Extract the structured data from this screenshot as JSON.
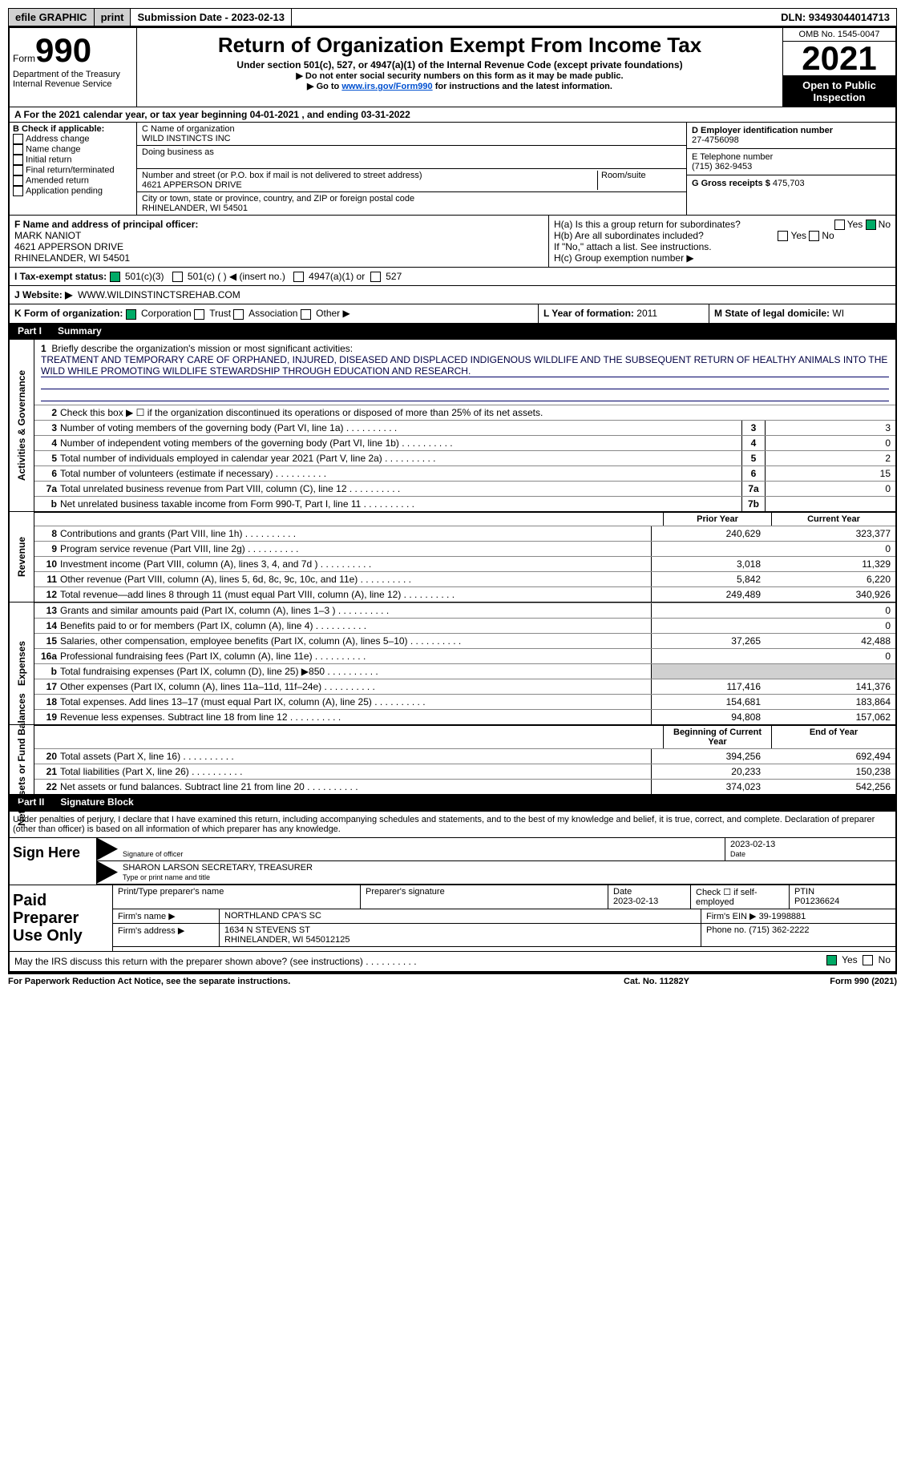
{
  "topbar": {
    "efile": "efile GRAPHIC",
    "print": "print",
    "submission": "Submission Date - 2023-02-13",
    "dln": "DLN: 93493044014713"
  },
  "header": {
    "form_word": "Form",
    "form_num": "990",
    "dept": "Department of the Treasury",
    "irs": "Internal Revenue Service",
    "title": "Return of Organization Exempt From Income Tax",
    "subtitle": "Under section 501(c), 527, or 4947(a)(1) of the Internal Revenue Code (except private foundations)",
    "note1": "▶ Do not enter social security numbers on this form as it may be made public.",
    "note2_pre": "▶ Go to ",
    "note2_link": "www.irs.gov/Form990",
    "note2_post": " for instructions and the latest information.",
    "omb": "OMB No. 1545-0047",
    "year": "2021",
    "public": "Open to Public Inspection"
  },
  "A": {
    "text": "A For the 2021 calendar year, or tax year beginning 04-01-2021   , and ending 03-31-2022"
  },
  "B": {
    "label": "B Check if applicable:",
    "opts": [
      "Address change",
      "Name change",
      "Initial return",
      "Final return/terminated",
      "Amended return",
      "Application pending"
    ]
  },
  "C": {
    "name_lbl": "C Name of organization",
    "name": "WILD INSTINCTS INC",
    "dba_lbl": "Doing business as",
    "addr_lbl": "Number and street (or P.O. box if mail is not delivered to street address)",
    "room_lbl": "Room/suite",
    "addr": "4621 APPERSON DRIVE",
    "city_lbl": "City or town, state or province, country, and ZIP or foreign postal code",
    "city": "RHINELANDER, WI  54501"
  },
  "D": {
    "ein_lbl": "D Employer identification number",
    "ein": "27-4756098",
    "tel_lbl": "E Telephone number",
    "tel": "(715) 362-9453",
    "gross_lbl": "G Gross receipts $",
    "gross": "475,703"
  },
  "F": {
    "lbl": "F  Name and address of principal officer:",
    "name": "MARK NANIOT",
    "addr1": "4621 APPERSON DRIVE",
    "addr2": "RHINELANDER, WI  54501"
  },
  "H": {
    "a": "H(a)  Is this a group return for subordinates?",
    "b": "H(b)  Are all subordinates included?",
    "note": "If \"No,\" attach a list. See instructions.",
    "c": "H(c)  Group exemption number ▶",
    "yes": "Yes",
    "no": "No"
  },
  "I": {
    "lbl": "I  Tax-exempt status:",
    "o1": "501(c)(3)",
    "o2": "501(c) (  ) ◀ (insert no.)",
    "o3": "4947(a)(1) or",
    "o4": "527"
  },
  "J": {
    "lbl": "J  Website: ▶",
    "val": "WWW.WILDINSTINCTSREHAB.COM"
  },
  "K": {
    "lbl": "K Form of organization:",
    "o1": "Corporation",
    "o2": "Trust",
    "o3": "Association",
    "o4": "Other ▶"
  },
  "L": {
    "lbl": "L Year of formation:",
    "val": "2011"
  },
  "M": {
    "lbl": "M State of legal domicile:",
    "val": "WI"
  },
  "part1": {
    "num": "Part I",
    "title": "Summary"
  },
  "mission": {
    "lbl": "Briefly describe the organization's mission or most significant activities:",
    "text": "TREATMENT AND TEMPORARY CARE OF ORPHANED, INJURED, DISEASED AND DISPLACED INDIGENOUS WILDLIFE AND THE SUBSEQUENT RETURN OF HEALTHY ANIMALS INTO THE WILD WHILE PROMOTING WILDLIFE STEWARDSHIP THROUGH EDUCATION AND RESEARCH."
  },
  "lines": {
    "l2": "Check this box ▶ ☐ if the organization discontinued its operations or disposed of more than 25% of its net assets.",
    "l3": {
      "t": "Number of voting members of the governing body (Part VI, line 1a)",
      "v": "3"
    },
    "l4": {
      "t": "Number of independent voting members of the governing body (Part VI, line 1b)",
      "v": "0"
    },
    "l5": {
      "t": "Total number of individuals employed in calendar year 2021 (Part V, line 2a)",
      "v": "2"
    },
    "l6": {
      "t": "Total number of volunteers (estimate if necessary)",
      "v": "15"
    },
    "l7a": {
      "t": "Total unrelated business revenue from Part VIII, column (C), line 12",
      "v": "0"
    },
    "l7b": {
      "t": "Net unrelated business taxable income from Form 990-T, Part I, line 11",
      "v": ""
    }
  },
  "cols": {
    "prior": "Prior Year",
    "current": "Current Year",
    "begin": "Beginning of Current Year",
    "end": "End of Year"
  },
  "rev": [
    {
      "n": "8",
      "t": "Contributions and grants (Part VIII, line 1h)",
      "p": "240,629",
      "c": "323,377"
    },
    {
      "n": "9",
      "t": "Program service revenue (Part VIII, line 2g)",
      "p": "",
      "c": "0"
    },
    {
      "n": "10",
      "t": "Investment income (Part VIII, column (A), lines 3, 4, and 7d )",
      "p": "3,018",
      "c": "11,329"
    },
    {
      "n": "11",
      "t": "Other revenue (Part VIII, column (A), lines 5, 6d, 8c, 9c, 10c, and 11e)",
      "p": "5,842",
      "c": "6,220"
    },
    {
      "n": "12",
      "t": "Total revenue—add lines 8 through 11 (must equal Part VIII, column (A), line 12)",
      "p": "249,489",
      "c": "340,926"
    }
  ],
  "exp": [
    {
      "n": "13",
      "t": "Grants and similar amounts paid (Part IX, column (A), lines 1–3 )",
      "p": "",
      "c": "0"
    },
    {
      "n": "14",
      "t": "Benefits paid to or for members (Part IX, column (A), line 4)",
      "p": "",
      "c": "0"
    },
    {
      "n": "15",
      "t": "Salaries, other compensation, employee benefits (Part IX, column (A), lines 5–10)",
      "p": "37,265",
      "c": "42,488"
    },
    {
      "n": "16a",
      "t": "Professional fundraising fees (Part IX, column (A), line 11e)",
      "p": "",
      "c": "0"
    },
    {
      "n": "b",
      "t": "Total fundraising expenses (Part IX, column (D), line 25) ▶850",
      "p": "",
      "c": "",
      "shade": true
    },
    {
      "n": "17",
      "t": "Other expenses (Part IX, column (A), lines 11a–11d, 11f–24e)",
      "p": "117,416",
      "c": "141,376"
    },
    {
      "n": "18",
      "t": "Total expenses. Add lines 13–17 (must equal Part IX, column (A), line 25)",
      "p": "154,681",
      "c": "183,864"
    },
    {
      "n": "19",
      "t": "Revenue less expenses. Subtract line 18 from line 12",
      "p": "94,808",
      "c": "157,062"
    }
  ],
  "net": [
    {
      "n": "20",
      "t": "Total assets (Part X, line 16)",
      "p": "394,256",
      "c": "692,494"
    },
    {
      "n": "21",
      "t": "Total liabilities (Part X, line 26)",
      "p": "20,233",
      "c": "150,238"
    },
    {
      "n": "22",
      "t": "Net assets or fund balances. Subtract line 21 from line 20",
      "p": "374,023",
      "c": "542,256"
    }
  ],
  "vlabels": {
    "gov": "Activities & Governance",
    "rev": "Revenue",
    "exp": "Expenses",
    "net": "Net Assets or Fund Balances"
  },
  "part2": {
    "num": "Part II",
    "title": "Signature Block"
  },
  "sig": {
    "penalty": "Under penalties of perjury, I declare that I have examined this return, including accompanying schedules and statements, and to the best of my knowledge and belief, it is true, correct, and complete. Declaration of preparer (other than officer) is based on all information of which preparer has any knowledge.",
    "sign_here": "Sign Here",
    "sig_officer": "Signature of officer",
    "sig_date": "2023-02-13",
    "date_lbl": "Date",
    "name": "SHARON LARSON  SECRETARY, TREASURER",
    "name_lbl": "Type or print name and title"
  },
  "prep": {
    "title": "Paid Preparer Use Only",
    "h": [
      "Print/Type preparer's name",
      "Preparer's signature",
      "Date",
      "Check ☐ if self-employed",
      "PTIN"
    ],
    "date": "2023-02-13",
    "ptin": "P01236624",
    "firm_name_lbl": "Firm's name     ▶",
    "firm_name": "NORTHLAND CPA'S SC",
    "firm_ein_lbl": "Firm's EIN ▶",
    "firm_ein": "39-1998881",
    "firm_addr_lbl": "Firm's address ▶",
    "firm_addr": "1634 N STEVENS ST",
    "firm_addr2": "RHINELANDER, WI  545012125",
    "phone_lbl": "Phone no.",
    "phone": "(715) 362-2222"
  },
  "discuss": {
    "t": "May the IRS discuss this return with the preparer shown above? (see instructions)",
    "yes": "Yes",
    "no": "No"
  },
  "foot": {
    "pra": "For Paperwork Reduction Act Notice, see the separate instructions.",
    "cat": "Cat. No. 11282Y",
    "fp": "Form 990 (2021)"
  }
}
